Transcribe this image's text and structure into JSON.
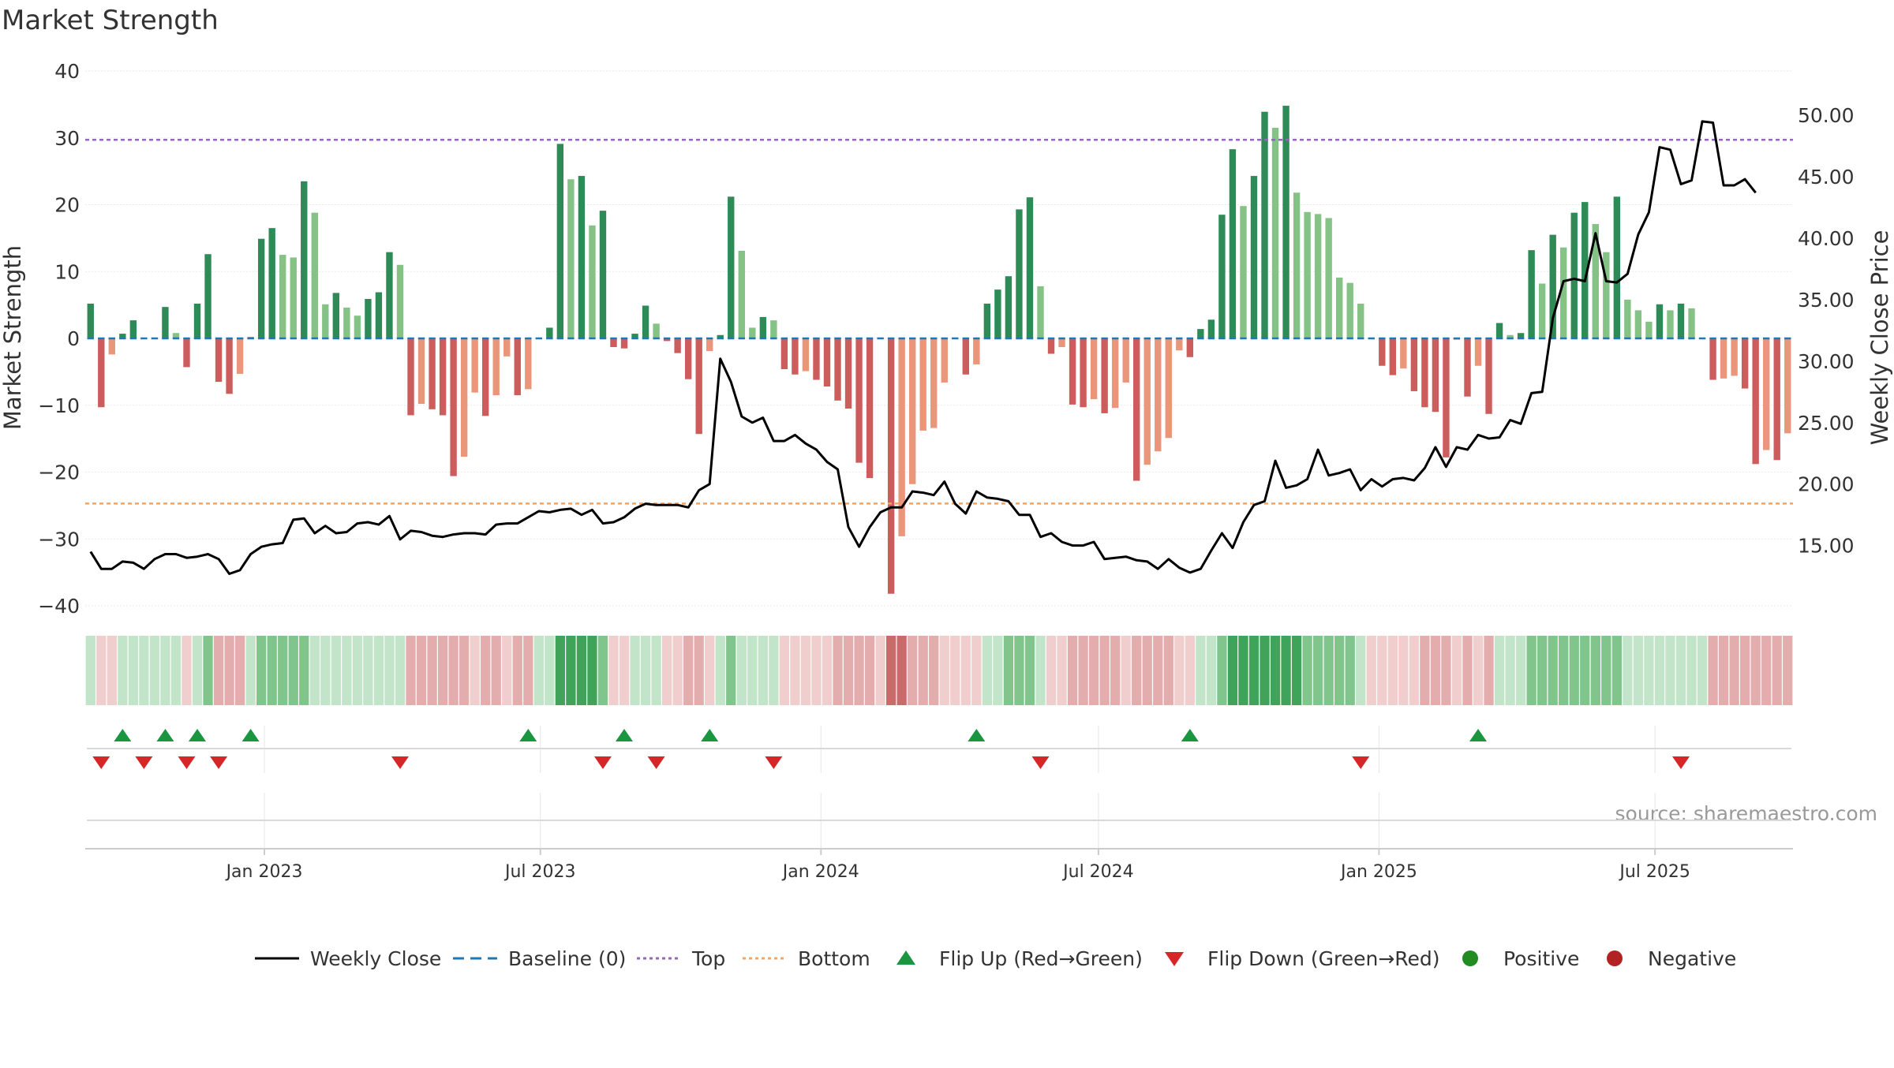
{
  "chart_data": {
    "type": "bar",
    "title": "Market Strength",
    "source": "source: sharemaestro.com",
    "y_left": {
      "label": "Market Strength",
      "ylim": [
        -40,
        40
      ],
      "ticks": [
        40,
        30,
        20,
        10,
        0,
        -10,
        -20,
        -30,
        -40
      ],
      "tick_labels": [
        "40",
        "30",
        "20",
        "10",
        "0",
        "−10",
        "−20",
        "−30",
        "−40"
      ]
    },
    "y_right": {
      "label": "Weekly Close Price",
      "ticks": [
        50,
        45,
        40,
        35,
        30,
        25,
        20,
        15
      ],
      "tick_labels": [
        "50.00",
        "45.00",
        "40.00",
        "35.00",
        "30.00",
        "25.00",
        "20.00",
        "15.00"
      ],
      "ylim": [
        10.1,
        53.6
      ]
    },
    "x": {
      "start": "2022-09-09",
      "week_days": 7,
      "tick_dates": [
        "2023-01-01",
        "2023-07-01",
        "2024-01-01",
        "2024-07-01",
        "2025-01-01",
        "2025-07-01"
      ],
      "tick_labels": [
        "Jan 2023",
        "Jul 2023",
        "Jan 2024",
        "Jul 2024",
        "Jan 2025",
        "Jul 2025"
      ]
    },
    "thresholds": {
      "top": 29.7,
      "bottom": -24.7,
      "baseline": 0
    },
    "grid": true,
    "legend_placement": "bottom-center",
    "legend": [
      "Weekly Close",
      "Baseline (0)",
      "Top",
      "Bottom",
      "Flip Up (Red→Green)",
      "Flip Down (Green→Red)",
      "Positive",
      "Negative"
    ],
    "colors": {
      "strong_green": "#2e8b57",
      "light_green": "#85c285",
      "strong_red": "#cd5c5c",
      "light_red": "#e9967a",
      "line": "#000000",
      "baseline": "#1f77b4",
      "top": "#9467bd",
      "bottom": "#f4a460",
      "flip_up": "#1a9641",
      "flip_down": "#d62728",
      "positive": "#228b22",
      "negative": "#b22222"
    },
    "series": [
      {
        "name": "Market Strength",
        "values": [
          5.2,
          -10.3,
          -2.4,
          0.7,
          2.7,
          0.1,
          0.1,
          4.7,
          0.8,
          -4.3,
          5.2,
          12.6,
          -6.5,
          -8.3,
          -5.3,
          0.2,
          14.9,
          16.5,
          12.5,
          12.1,
          23.5,
          18.8,
          5.1,
          6.8,
          4.6,
          3.4,
          5.9,
          6.9,
          12.9,
          11.0,
          -11.5,
          -9.8,
          -10.6,
          -11.5,
          -20.6,
          -17.7,
          -8.1,
          -11.6,
          -8.5,
          -2.7,
          -8.5,
          -7.6,
          0.1,
          1.6,
          29.1,
          23.8,
          24.3,
          16.9,
          19.1,
          -1.3,
          -1.5,
          0.7,
          4.9,
          2.2,
          -0.4,
          -2.2,
          -6.1,
          -14.3,
          -1.9,
          0.5,
          21.2,
          13.1,
          1.6,
          3.2,
          2.7,
          -4.6,
          -5.4,
          -4.9,
          -6.2,
          -7.2,
          -9.3,
          -10.5,
          -18.6,
          -20.9,
          0.1,
          -38.2,
          -29.6,
          -21.8,
          -13.8,
          -13.4,
          -6.6,
          0.1,
          -5.4,
          -3.9,
          5.2,
          7.3,
          9.3,
          19.3,
          21.1,
          7.8,
          -2.3,
          -1.3,
          -9.9,
          -10.3,
          -9.1,
          -11.2,
          -10.4,
          -6.6,
          -21.3,
          -18.9,
          -16.9,
          -14.9,
          -1.8,
          -2.8,
          1.4,
          2.8,
          18.5,
          28.3,
          19.8,
          24.3,
          33.9,
          31.5,
          34.8,
          21.8,
          18.9,
          18.6,
          18.0,
          9.1,
          8.3,
          5.2,
          0.1,
          -4.1,
          -5.5,
          -4.5,
          -7.9,
          -10.3,
          -11.0,
          -17.8,
          -0.2,
          -8.7,
          -4.1,
          -11.3,
          2.3,
          0.5,
          0.8,
          13.2,
          8.2,
          15.5,
          13.6,
          18.8,
          20.4,
          17.1,
          12.9,
          21.2,
          5.8,
          4.2,
          2.5,
          5.1,
          4.2,
          5.2,
          4.5,
          0.1,
          -6.2,
          -6.0,
          -5.6,
          -7.5,
          -18.8,
          -16.7,
          -18.2,
          -14.2
        ]
      },
      {
        "name": "Weekly Close",
        "values": [
          14.5,
          13.1,
          13.1,
          13.7,
          13.6,
          13.1,
          13.9,
          14.3,
          14.3,
          14.0,
          14.1,
          14.3,
          13.9,
          12.7,
          13.0,
          14.3,
          14.9,
          15.1,
          15.2,
          17.1,
          17.2,
          16.0,
          16.6,
          16.0,
          16.1,
          16.8,
          16.9,
          16.7,
          17.4,
          15.5,
          16.2,
          16.1,
          15.8,
          15.7,
          15.9,
          16.0,
          16.0,
          15.9,
          16.7,
          16.8,
          16.8,
          17.3,
          17.8,
          17.7,
          17.9,
          18.0,
          17.5,
          17.9,
          16.8,
          16.9,
          17.3,
          18.0,
          18.4,
          18.3,
          18.3,
          18.3,
          18.1,
          19.5,
          20.0,
          30.2,
          28.3,
          25.5,
          25.0,
          25.4,
          23.5,
          23.5,
          24.0,
          23.3,
          22.8,
          21.8,
          21.2,
          16.5,
          14.9,
          16.5,
          17.7,
          18.1,
          18.1,
          19.4,
          19.3,
          19.1,
          20.2,
          18.4,
          17.6,
          19.4,
          18.9,
          18.8,
          18.6,
          17.5,
          17.5,
          15.7,
          16.0,
          15.3,
          15.0,
          15.0,
          15.3,
          13.9,
          14.0,
          14.1,
          13.8,
          13.7,
          13.1,
          13.9,
          13.2,
          12.8,
          13.1,
          14.6,
          16.0,
          14.8,
          16.9,
          18.3,
          18.6,
          21.9,
          19.7,
          19.9,
          20.4,
          22.8,
          20.7,
          20.9,
          21.2,
          19.5,
          20.4,
          19.8,
          20.4,
          20.5,
          20.3,
          21.3,
          23.0,
          21.4,
          23.0,
          22.8,
          24.0,
          23.7,
          23.8,
          25.2,
          24.9,
          27.4,
          27.5,
          33.5,
          36.5,
          36.7,
          36.5,
          40.4,
          36.5,
          36.4,
          37.1,
          40.3,
          42.1,
          47.4,
          47.2,
          44.4,
          44.7,
          49.5,
          49.4,
          44.3,
          44.3,
          44.8,
          43.7
        ]
      }
    ],
    "flip_up_weeks": [
      3,
      7,
      10,
      15,
      41,
      50,
      58,
      83,
      103,
      130
    ],
    "flip_down_weeks": [
      1,
      5,
      9,
      12,
      29,
      48,
      53,
      64,
      89,
      119,
      149
    ],
    "regime_strip": {
      "levels": [
        1,
        -1,
        -1,
        1,
        1,
        1,
        1,
        1,
        1,
        -1,
        1,
        2,
        -2,
        -2,
        -2,
        1,
        2,
        2,
        2,
        2,
        2,
        1,
        1,
        1,
        1,
        1,
        1,
        1,
        1,
        1,
        -2,
        -2,
        -2,
        -2,
        -2,
        -2,
        -1,
        -2,
        -2,
        -1,
        -2,
        -2,
        1,
        1,
        3,
        3,
        3,
        3,
        2,
        -1,
        -1,
        1,
        1,
        1,
        -1,
        -1,
        -2,
        -2,
        -1,
        1,
        2,
        1,
        1,
        1,
        1,
        -1,
        -1,
        -1,
        -1,
        -1,
        -2,
        -2,
        -2,
        -2,
        -1,
        -3,
        -3,
        -2,
        -2,
        -2,
        -1,
        -1,
        -1,
        -1,
        1,
        1,
        2,
        2,
        2,
        1,
        -1,
        -1,
        -2,
        -2,
        -2,
        -2,
        -2,
        -1,
        -2,
        -2,
        -2,
        -2,
        -1,
        -1,
        1,
        1,
        2,
        3,
        3,
        3,
        3,
        3,
        3,
        3,
        2,
        2,
        2,
        2,
        2,
        1,
        -1,
        -1,
        -1,
        -1,
        -1,
        -2,
        -2,
        -2,
        -1,
        -2,
        -1,
        -2,
        1,
        1,
        1,
        2,
        2,
        2,
        2,
        2,
        2,
        2,
        2,
        2,
        1,
        1,
        1,
        1,
        1,
        1,
        1,
        1,
        -2,
        -2,
        -2,
        -2,
        -2,
        -2,
        -2,
        -2
      ]
    }
  }
}
